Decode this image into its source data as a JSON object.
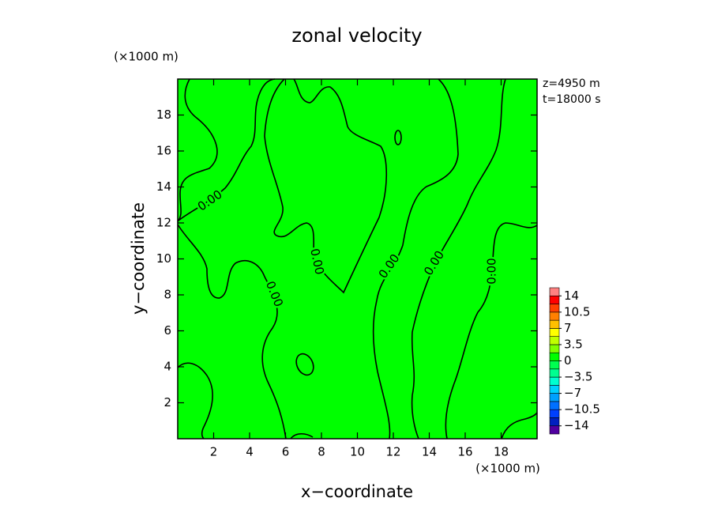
{
  "chart_data": {
    "type": "contour",
    "title": "zonal velocity",
    "x_label": "x−coordinate",
    "y_label": "y−coordinate",
    "x_unit": "(×1000 m)",
    "y_unit": "(×1000 m)",
    "annotations": [
      "z=4950 m",
      "t=18000 s"
    ],
    "xlim": [
      0,
      20
    ],
    "ylim": [
      0,
      20
    ],
    "xticks": [
      2,
      4,
      6,
      8,
      10,
      12,
      14,
      16,
      18
    ],
    "yticks": [
      2,
      4,
      6,
      8,
      10,
      12,
      14,
      16,
      18
    ],
    "fill_color": "#00ff00",
    "contour_level": {
      "value": 0,
      "label": "0.00"
    },
    "clim": [
      -15.75,
      15.75
    ],
    "colorbar_colors": [
      "#5000a0",
      "#0020c0",
      "#0040ff",
      "#0070ff",
      "#00a0ff",
      "#00d0ff",
      "#00ffd0",
      "#00ff90",
      "#00ff50",
      "#00ff00",
      "#80ff00",
      "#c0ff00",
      "#ffff00",
      "#ffc000",
      "#ff8000",
      "#ff4000",
      "#ff0000",
      "#ff8080"
    ],
    "colorbar_ticks": [
      {
        "value": 14,
        "label": "14"
      },
      {
        "value": 10.5,
        "label": "10.5"
      },
      {
        "value": 7,
        "label": "7"
      },
      {
        "value": 3.5,
        "label": "3.5"
      },
      {
        "value": 0,
        "label": "0"
      },
      {
        "value": -3.5,
        "label": "−3.5"
      },
      {
        "value": -7,
        "label": "−7"
      },
      {
        "value": -10.5,
        "label": "−10.5"
      },
      {
        "value": -14,
        "label": "−14"
      }
    ]
  }
}
